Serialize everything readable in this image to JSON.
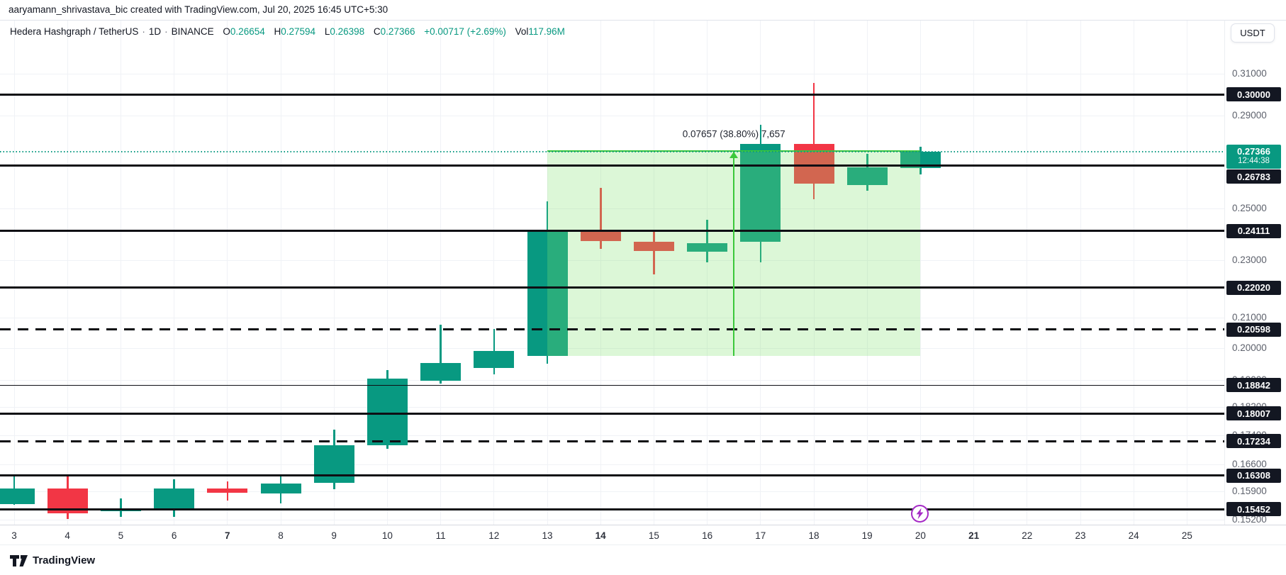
{
  "header": {
    "attribution": "aaryamann_shrivastava_bic created with TradingView.com, Jul 20, 2025 16:45 UTC+5:30"
  },
  "legend": {
    "symbol": "Hedera Hashgraph / TetherUS",
    "separator": "·",
    "interval": "1D",
    "exchange": "BINANCE",
    "ohlc": [
      {
        "k": "O",
        "v": "0.26654"
      },
      {
        "k": "H",
        "v": "0.27594"
      },
      {
        "k": "L",
        "v": "0.26398"
      },
      {
        "k": "C",
        "v": "0.27366"
      }
    ],
    "change": "+0.00717 (+2.69%)",
    "vol_label": "Vol",
    "vol_value": "117.96M"
  },
  "price_axis": {
    "currency_button": "USDT",
    "ticks": [
      {
        "label": "0.31000",
        "price": 0.31
      },
      {
        "label": "0.29000",
        "price": 0.29
      },
      {
        "label": "0.25000",
        "price": 0.25
      },
      {
        "label": "0.23000",
        "price": 0.23
      },
      {
        "label": "0.21000",
        "price": 0.21
      },
      {
        "label": "0.20000",
        "price": 0.2
      },
      {
        "label": "0.19000",
        "price": 0.19
      },
      {
        "label": "0.18200",
        "price": 0.182
      },
      {
        "label": "0.17400",
        "price": 0.174
      },
      {
        "label": "0.16600",
        "price": 0.166
      },
      {
        "label": "0.15900",
        "price": 0.159
      },
      {
        "label": "0.15200",
        "price": 0.152
      }
    ],
    "levels": [
      {
        "label": "0.30000",
        "price": 0.3,
        "style": "thick"
      },
      {
        "label": "0.26783",
        "price": 0.26783,
        "style": "thick",
        "label_y": 248
      },
      {
        "label": "0.24111",
        "price": 0.24111,
        "style": "thick"
      },
      {
        "label": "0.22020",
        "price": 0.2202,
        "style": "thick"
      },
      {
        "label": "0.20598",
        "price": 0.20598,
        "style": "dashed"
      },
      {
        "label": "0.18842",
        "price": 0.18842,
        "style": "thin"
      },
      {
        "label": "0.18007",
        "price": 0.18007,
        "style": "thick"
      },
      {
        "label": "0.17234",
        "price": 0.17234,
        "style": "dashed"
      },
      {
        "label": "0.16308",
        "price": 0.16308,
        "style": "thick"
      },
      {
        "label": "0.15452",
        "price": 0.15452,
        "style": "thick"
      }
    ],
    "current": {
      "label": "0.27366",
      "price": 0.27366,
      "countdown": "12:44:38"
    }
  },
  "time_axis": {
    "days": [
      {
        "label": "3",
        "day": 3,
        "bold": false
      },
      {
        "label": "4",
        "day": 4,
        "bold": false
      },
      {
        "label": "5",
        "day": 5,
        "bold": false
      },
      {
        "label": "6",
        "day": 6,
        "bold": false
      },
      {
        "label": "7",
        "day": 7,
        "bold": true
      },
      {
        "label": "8",
        "day": 8,
        "bold": false
      },
      {
        "label": "9",
        "day": 9,
        "bold": false
      },
      {
        "label": "10",
        "day": 10,
        "bold": false
      },
      {
        "label": "11",
        "day": 11,
        "bold": false
      },
      {
        "label": "12",
        "day": 12,
        "bold": false
      },
      {
        "label": "13",
        "day": 13,
        "bold": false
      },
      {
        "label": "14",
        "day": 14,
        "bold": true
      },
      {
        "label": "15",
        "day": 15,
        "bold": false
      },
      {
        "label": "16",
        "day": 16,
        "bold": false
      },
      {
        "label": "17",
        "day": 17,
        "bold": false
      },
      {
        "label": "18",
        "day": 18,
        "bold": false
      },
      {
        "label": "19",
        "day": 19,
        "bold": false
      },
      {
        "label": "20",
        "day": 20,
        "bold": false
      },
      {
        "label": "21",
        "day": 21,
        "bold": true
      },
      {
        "label": "22",
        "day": 22,
        "bold": false
      },
      {
        "label": "23",
        "day": 23,
        "bold": false
      },
      {
        "label": "24",
        "day": 24,
        "bold": false
      },
      {
        "label": "25",
        "day": 25,
        "bold": false
      }
    ]
  },
  "chart_data": {
    "type": "candlestick",
    "title": "Hedera Hashgraph / TetherUS, 1D, BINANCE",
    "scale": "logarithmic",
    "x_unit": "day of July 2025",
    "visible_day_range": [
      3,
      25
    ],
    "visible_price_range": [
      0.149,
      0.316
    ],
    "grid": true,
    "candles": [
      {
        "day": 3,
        "o": 0.1558,
        "h": 0.163,
        "l": 0.1556,
        "c": 0.1597
      },
      {
        "day": 4,
        "o": 0.1597,
        "h": 0.1632,
        "l": 0.1521,
        "c": 0.1535
      },
      {
        "day": 5,
        "o": 0.154,
        "h": 0.1572,
        "l": 0.1527,
        "c": 0.1547
      },
      {
        "day": 6,
        "o": 0.1546,
        "h": 0.1621,
        "l": 0.1527,
        "c": 0.1597
      },
      {
        "day": 7,
        "o": 0.1597,
        "h": 0.1615,
        "l": 0.1567,
        "c": 0.1586
      },
      {
        "day": 8,
        "o": 0.1584,
        "h": 0.163,
        "l": 0.156,
        "c": 0.1611
      },
      {
        "day": 9,
        "o": 0.1611,
        "h": 0.1755,
        "l": 0.1596,
        "c": 0.1712
      },
      {
        "day": 10,
        "o": 0.1712,
        "h": 0.193,
        "l": 0.1701,
        "c": 0.1905
      },
      {
        "day": 11,
        "o": 0.1898,
        "h": 0.2075,
        "l": 0.1889,
        "c": 0.1953
      },
      {
        "day": 12,
        "o": 0.1937,
        "h": 0.2061,
        "l": 0.1917,
        "c": 0.1991
      },
      {
        "day": 13,
        "o": 0.1974,
        "h": 0.2528,
        "l": 0.1949,
        "c": 0.2411
      },
      {
        "day": 14,
        "o": 0.2411,
        "h": 0.2584,
        "l": 0.2344,
        "c": 0.2373
      },
      {
        "day": 15,
        "o": 0.2371,
        "h": 0.2411,
        "l": 0.2249,
        "c": 0.2336
      },
      {
        "day": 16,
        "o": 0.2332,
        "h": 0.2454,
        "l": 0.2293,
        "c": 0.2365
      },
      {
        "day": 17,
        "o": 0.2369,
        "h": 0.2858,
        "l": 0.2293,
        "c": 0.2772
      },
      {
        "day": 18,
        "o": 0.2772,
        "h": 0.3055,
        "l": 0.2537,
        "c": 0.2601
      },
      {
        "day": 19,
        "o": 0.2595,
        "h": 0.2728,
        "l": 0.257,
        "c": 0.267
      },
      {
        "day": 20,
        "o": 0.26654,
        "h": 0.27594,
        "l": 0.26398,
        "c": 0.27366
      }
    ],
    "drawn_levels": [
      "0.30000",
      "0.26783",
      "0.24111",
      "0.22020",
      "0.20598",
      "0.18842",
      "0.18007",
      "0.17234",
      "0.16308",
      "0.15452"
    ]
  },
  "measure_tool": {
    "label": "0.07657 (38.80%) 7,657",
    "from_day": 13,
    "to_day": 20,
    "from_price": 0.19738,
    "to_price": 0.27395
  },
  "event_icon": {
    "day": 20,
    "type": "lightning"
  },
  "footer": {
    "logo_text": "TradingView"
  },
  "colors": {
    "up": "#089981",
    "down": "#f23645",
    "current_line": "#089981",
    "level_line": "#0e0f14",
    "measure_line": "#3bc83b",
    "measure_fill": "rgba(130,225,110,0.28)",
    "event_purple": "#a62bc6"
  }
}
